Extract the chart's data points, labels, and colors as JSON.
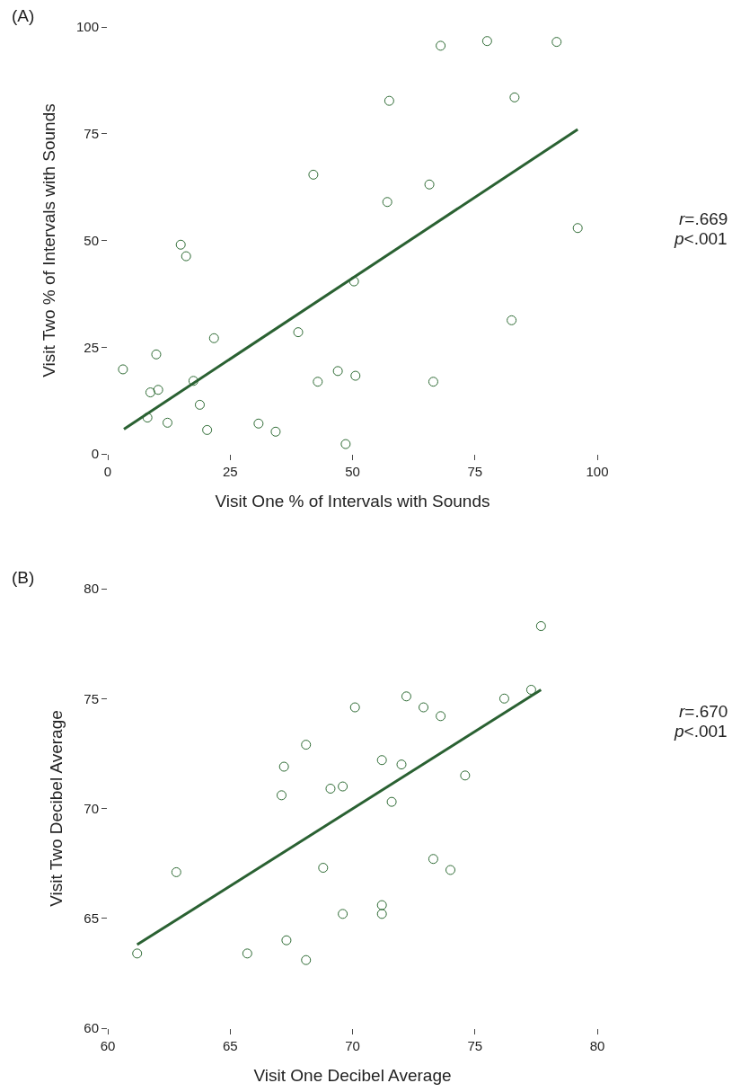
{
  "chart_data": [
    {
      "type": "scatter",
      "xlabel": "Visit One % of Intervals with Sounds",
      "ylabel": "Visit Two % of Intervals with Sounds",
      "annotations": [
        "(A)",
        "r=.669",
        "p<.001"
      ],
      "xlim": [
        0,
        100
      ],
      "ylim": [
        0,
        100
      ],
      "xticks": [
        0,
        25,
        50,
        75,
        100
      ],
      "yticks": [
        0,
        25,
        50,
        75,
        100
      ],
      "grid": false,
      "series": [
        {
          "marker": "circle",
          "color": "#2e6b34",
          "x": [
            3.1,
            8.7,
            10.3,
            8.1,
            12.2,
            9.9,
            14.9,
            16.0,
            21.7,
            17.5,
            18.8,
            20.3,
            30.8,
            34.3,
            38.9,
            42.0,
            42.9,
            47.0,
            48.6,
            50.3,
            50.6,
            57.1,
            57.5,
            65.7,
            66.5,
            68.0,
            77.5,
            82.5,
            83.1,
            91.7,
            96.0
          ],
          "values": [
            19.8,
            14.4,
            15.0,
            8.5,
            7.3,
            23.3,
            49.0,
            46.3,
            27.1,
            17.1,
            11.5,
            5.6,
            7.1,
            5.2,
            28.5,
            65.4,
            16.9,
            19.4,
            2.3,
            40.4,
            18.3,
            59.0,
            82.7,
            63.1,
            16.9,
            95.6,
            96.7,
            31.3,
            83.5,
            96.5,
            52.9
          ]
        },
        {
          "type": "line",
          "color": "#2a6132",
          "line_style": "solid",
          "x": [
            3.3,
            96
          ],
          "values": [
            5.8,
            76.0
          ]
        }
      ]
    },
    {
      "type": "scatter",
      "xlabel": "Visit One Decibel Average",
      "ylabel": "Visit Two Decibel Average",
      "annotations": [
        "(B)",
        "r=.670",
        "p<.001"
      ],
      "xlim": [
        60,
        80
      ],
      "ylim": [
        60,
        80
      ],
      "xticks": [
        60,
        65,
        70,
        75,
        80
      ],
      "yticks": [
        60,
        65,
        70,
        75,
        80
      ],
      "grid": false,
      "series": [
        {
          "marker": "circle",
          "color": "#2e6b34",
          "x": [
            61.2,
            62.8,
            65.7,
            67.1,
            67.2,
            67.3,
            68.1,
            68.1,
            68.8,
            69.1,
            69.6,
            69.6,
            70.1,
            71.2,
            71.2,
            71.2,
            71.6,
            72.0,
            72.2,
            72.9,
            73.3,
            73.6,
            74.0,
            74.6,
            76.2,
            77.3,
            77.7
          ],
          "values": [
            63.4,
            67.1,
            63.4,
            70.6,
            71.9,
            64.0,
            63.1,
            72.9,
            67.3,
            70.9,
            71.0,
            65.2,
            74.6,
            72.2,
            65.2,
            65.6,
            70.3,
            72.0,
            75.1,
            74.6,
            67.7,
            74.2,
            67.2,
            71.5,
            75.0,
            75.4,
            78.3
          ]
        },
        {
          "type": "line",
          "color": "#2a6132",
          "line_style": "solid",
          "x": [
            61.2,
            77.7
          ],
          "values": [
            63.8,
            75.4
          ]
        }
      ]
    }
  ]
}
